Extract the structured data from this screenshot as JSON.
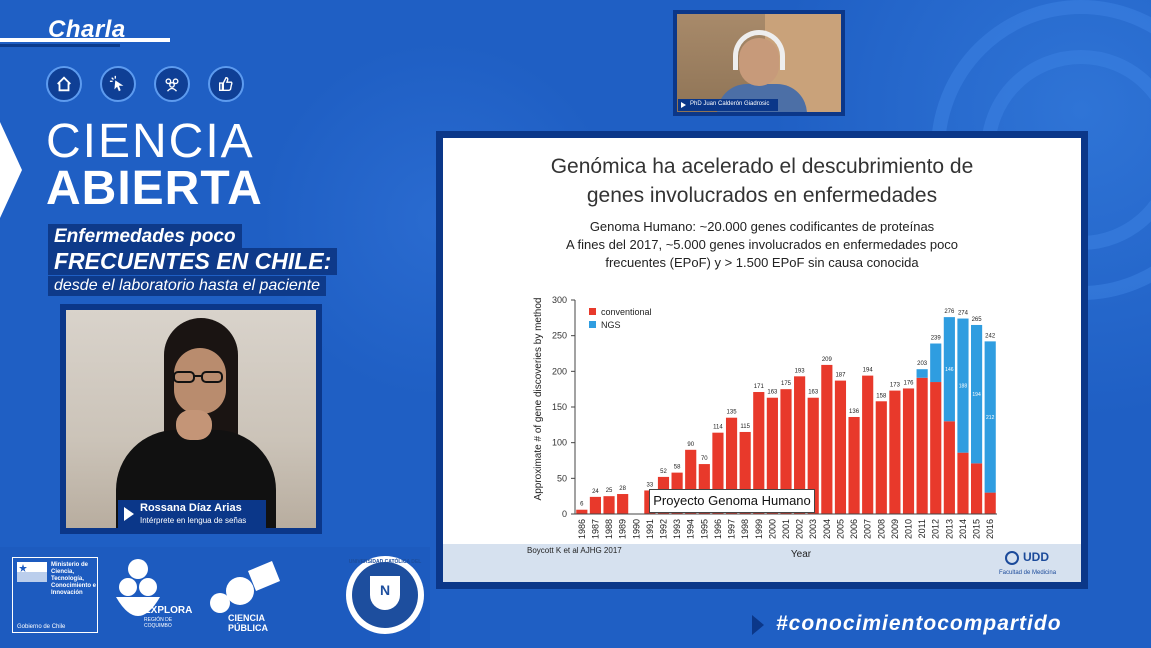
{
  "header": {
    "charla": "Charla",
    "title_line1": "CIENCIA",
    "title_line2": "ABIERTA",
    "subtitle_line1": "Enfermedades poco",
    "subtitle_line2": "FRECUENTES EN CHILE:",
    "subtitle_line3": "desde el laboratorio hasta el paciente"
  },
  "nav_icons": [
    "home-icon",
    "click-icon",
    "group-icon",
    "thumbs-up-icon"
  ],
  "interpreter": {
    "name": "Rossana Díaz Arias",
    "role": "Intérprete en lengua de señas"
  },
  "speaker": {
    "name": "PhD Juan Calderón Giadrosic"
  },
  "slide": {
    "title_line1": "Genómica ha acelerado el descubrimiento de",
    "title_line2": "genes involucrados en enfermedades",
    "sub_line1": "Genoma Humano:  ~20.000 genes codificantes de proteínas",
    "sub_line2": "A fines  del 2017,  ~5.000  genes involucrados en enfermedades poco",
    "sub_line3": "frecuentes (EPoF) y > 1.500 EPoF sin causa conocida",
    "reference": "Boycott K et al AJHG 2017",
    "annotation": "Proyecto Genoma Humano",
    "logo_text": "UDD",
    "logo_sub": "Facultad de Medicina"
  },
  "chart_data": {
    "type": "bar",
    "stacked": true,
    "xlabel": "Year",
    "ylabel": "Approximate # of gene discoveries by method",
    "ylim": [
      0,
      300
    ],
    "yticks": [
      0,
      50,
      100,
      150,
      200,
      250,
      300
    ],
    "categories": [
      "1986",
      "1987",
      "1988",
      "1989",
      "1990",
      "1991",
      "1992",
      "1993",
      "1994",
      "1995",
      "1996",
      "1997",
      "1998",
      "1999",
      "2000",
      "2001",
      "2002",
      "2003",
      "2004",
      "2005",
      "2006",
      "2007",
      "2008",
      "2009",
      "2010",
      "2011",
      "2012",
      "2013",
      "2014",
      "2015",
      "2016"
    ],
    "series": [
      {
        "name": "conventional",
        "color": "#e8392b",
        "values": [
          6,
          24,
          25,
          28,
          0,
          33,
          52,
          58,
          90,
          70,
          114,
          135,
          115,
          171,
          163,
          175,
          193,
          163,
          209,
          187,
          136,
          194,
          158,
          173,
          176,
          191,
          185,
          130,
          86,
          71,
          30
        ]
      },
      {
        "name": "NGS",
        "color": "#2f9de0",
        "values": [
          0,
          0,
          0,
          0,
          0,
          0,
          0,
          0,
          0,
          0,
          0,
          0,
          0,
          0,
          0,
          0,
          0,
          0,
          0,
          0,
          0,
          0,
          0,
          0,
          0,
          12,
          54,
          146,
          188,
          194,
          212
        ]
      }
    ],
    "totals": [
      "6",
      "24",
      "25",
      "28",
      "",
      "33",
      "52",
      "58",
      "90",
      "70",
      "114",
      "135",
      "115",
      "171",
      "163",
      "175",
      "193",
      "163",
      "209",
      "187",
      "136",
      "194",
      "158",
      "173",
      "176",
      "203",
      "239",
      "276",
      "274",
      "265",
      "242"
    ],
    "legend_position": "top-left"
  },
  "footer": {
    "logo1_line": "Ministerio de Ciencia, Tecnología, Conocimiento e Innovación",
    "logo1_gov": "Gobierno de Chile",
    "logo2": "EXPLORA",
    "logo2_sub": "REGIÓN DE COQUIMBO",
    "logo3_line1": "CIENCIA",
    "logo3_line2": "PÚBLICA",
    "logo4": "UNIVERSIDAD CATÓLICA DEL NORTE",
    "logo4_sub": "CHILE",
    "hashtag": "#conocimientocompartido"
  },
  "colors": {
    "background": "#1f5fc4",
    "dark_blue": "#0b3789",
    "conventional": "#e8392b",
    "ngs": "#2f9de0"
  }
}
